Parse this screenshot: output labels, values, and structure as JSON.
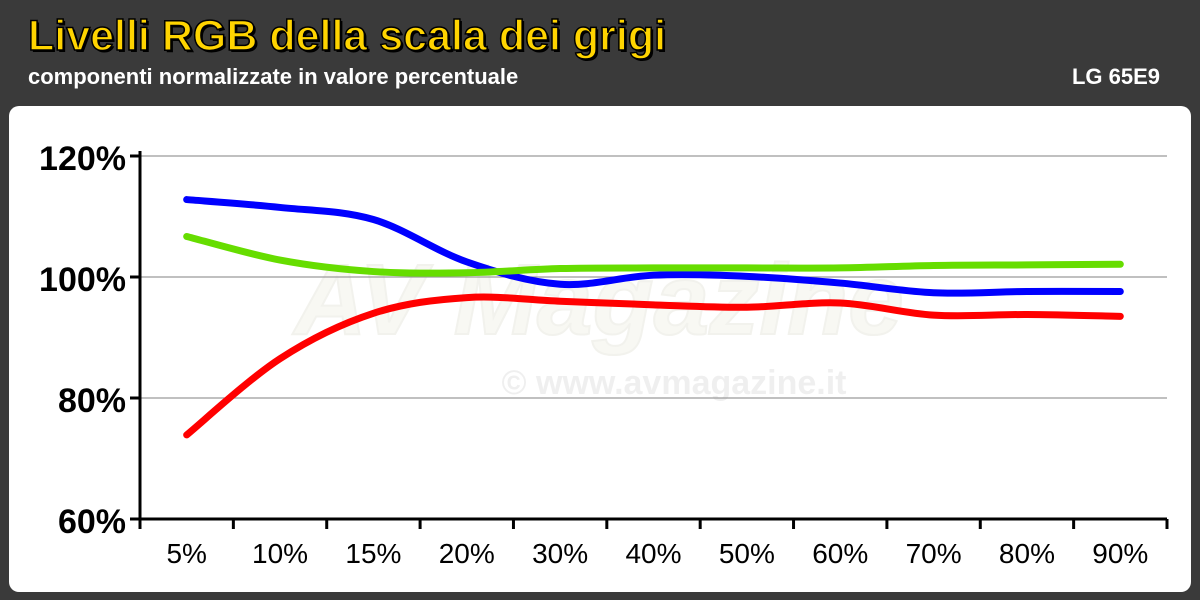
{
  "header": {
    "title": "Livelli RGB della scala dei grigi",
    "subtitle": "componenti normalizzate in valore percentuale",
    "model": "LG 65E9"
  },
  "watermark": {
    "text": "© www.avmagazine.it",
    "logo": "AV Magazine"
  },
  "colors": {
    "red": "#ff0000",
    "green": "#66dd00",
    "blue": "#0000ff",
    "title": "#ffd400",
    "background": "#3a3a3a"
  },
  "chart_data": {
    "type": "line",
    "categories": [
      "5%",
      "10%",
      "15%",
      "20%",
      "30%",
      "40%",
      "50%",
      "60%",
      "70%",
      "80%",
      "90%"
    ],
    "y_ticks": [
      "60%",
      "80%",
      "100%",
      "120%"
    ],
    "ylim": [
      60,
      120
    ],
    "grid": true,
    "series": [
      {
        "color": "#0000ff",
        "values": [
          112.8,
          111.5,
          109.5,
          102.5,
          98.8,
          100.3,
          100.1,
          99.0,
          97.4,
          97.6,
          97.6
        ]
      },
      {
        "color": "#66dd00",
        "values": [
          106.7,
          102.8,
          100.9,
          100.7,
          101.4,
          101.5,
          101.5,
          101.5,
          101.9,
          102.0,
          102.1
        ]
      },
      {
        "color": "#ff0000",
        "values": [
          73.9,
          86.5,
          94.0,
          96.6,
          96.0,
          95.4,
          95.0,
          95.7,
          93.7,
          93.8,
          93.5
        ]
      }
    ]
  }
}
